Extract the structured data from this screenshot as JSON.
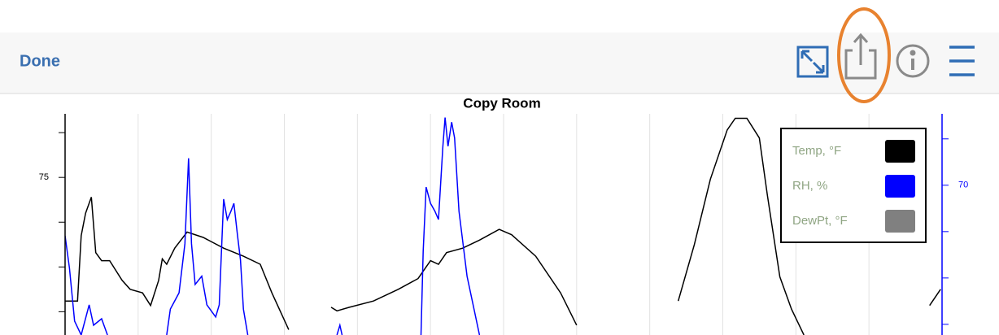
{
  "toolbar": {
    "done": "Done"
  },
  "chart_data": {
    "type": "line",
    "title": "Copy Room",
    "xlim": [
      0,
      12
    ],
    "xgrid": [
      1,
      2,
      3,
      4,
      5,
      6,
      7,
      8,
      9,
      10,
      11
    ],
    "ylim": [
      57.4,
      82.1
    ],
    "yticks": [
      75
    ],
    "yminor_ticks": [
      80,
      70,
      65,
      60
    ],
    "y2lim": [
      37.7,
      85.4
    ],
    "y2ticks": [
      70
    ],
    "y2minor_ticks": [
      80,
      60,
      50,
      40
    ],
    "legend": "upper right",
    "series": [
      {
        "name": "Temp, °F",
        "color": "#000000",
        "x": [
          0,
          0.17,
          0.22,
          0.28,
          0.36,
          0.42,
          0.5,
          0.61,
          0.78,
          0.89,
          1.06,
          1.17,
          1.28,
          1.33,
          1.39,
          1.5,
          1.67,
          1.89,
          2.17,
          2.44,
          2.67,
          2.83,
          3.06,
          3.4,
          3.64,
          3.72,
          3.89,
          4.22,
          4.56,
          4.83,
          5,
          5.11,
          5.22,
          5.44,
          5.67,
          5.94,
          6.11,
          6.44,
          6.78,
          7,
          7.7,
          8.39,
          8.61,
          8.83,
          9.06,
          9.17,
          9.33,
          9.5,
          9.61,
          9.78,
          9.94,
          10.11,
          11,
          11.83,
          11.98
        ],
        "values": [
          61.2,
          61.2,
          68.5,
          71,
          72.8,
          66.6,
          65.7,
          65.7,
          63.5,
          62.5,
          62.1,
          60.7,
          63.5,
          65.9,
          65.3,
          67.1,
          68.9,
          68.3,
          67.1,
          66.2,
          65.3,
          62.1,
          58,
          null,
          60.5,
          60.1,
          60.5,
          61.2,
          62.5,
          63.7,
          65.7,
          65.3,
          66.6,
          67.1,
          68,
          69.2,
          68.6,
          66.2,
          62.1,
          58.5,
          null,
          61.2,
          67.5,
          74.8,
          80.3,
          81.6,
          81.6,
          79.4,
          73,
          63.9,
          60.3,
          57.4,
          null,
          60.7,
          62.5
        ]
      },
      {
        "name": "RH, %",
        "color": "#0000ff",
        "axis": "y2",
        "x": [
          0,
          0.06,
          0.13,
          0.22,
          0.33,
          0.39,
          0.5,
          0.58,
          1,
          1.39,
          1.44,
          1.56,
          1.64,
          1.69,
          1.73,
          1.78,
          1.87,
          1.94,
          2.06,
          2.11,
          2.17,
          2.22,
          2.27,
          2.31,
          2.36,
          2.4,
          2.44,
          2.5,
          3,
          3.72,
          3.76,
          3.79,
          4,
          4.87,
          4.9,
          4.94,
          5,
          5.06,
          5.11,
          5.17,
          5.2,
          5.24,
          5.29,
          5.33,
          5.39,
          5.5,
          5.67
        ],
        "values": [
          59.1,
          52.1,
          40.7,
          37.7,
          44.2,
          39.8,
          41.2,
          37.7,
          null,
          37.7,
          43.3,
          46.8,
          57.4,
          75.8,
          57.4,
          48.6,
          50.4,
          44.2,
          41.6,
          44.2,
          67,
          62.6,
          64.4,
          66.1,
          59.1,
          53.9,
          43.3,
          37.7,
          null,
          37.7,
          39.8,
          37.7,
          null,
          37.7,
          55.8,
          69.6,
          66.1,
          64.4,
          62.6,
          78.4,
          84.6,
          78.4,
          83.6,
          80.2,
          64.4,
          50.4,
          37.7
        ]
      },
      {
        "name": "DewPt, °F",
        "color": "#808080",
        "x": [],
        "values": []
      }
    ]
  }
}
